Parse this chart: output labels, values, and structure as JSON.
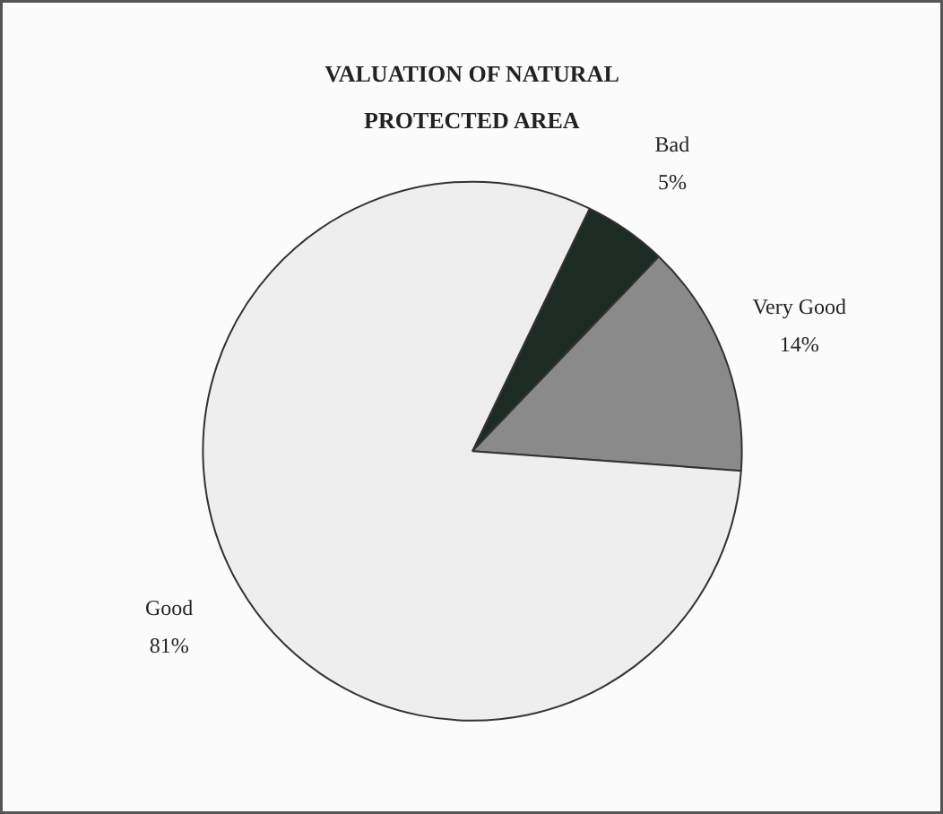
{
  "chart_data": {
    "type": "pie",
    "title": "VALUATION OF NATURAL\nPROTECTED AREA",
    "categories": [
      "Bad",
      "Very Good",
      "Good"
    ],
    "values": [
      5,
      14,
      81
    ],
    "value_labels": [
      "5%",
      "14%",
      "81%"
    ],
    "colors": [
      "#1c2b24",
      "#8a8a8a",
      "#eeeeee"
    ]
  }
}
